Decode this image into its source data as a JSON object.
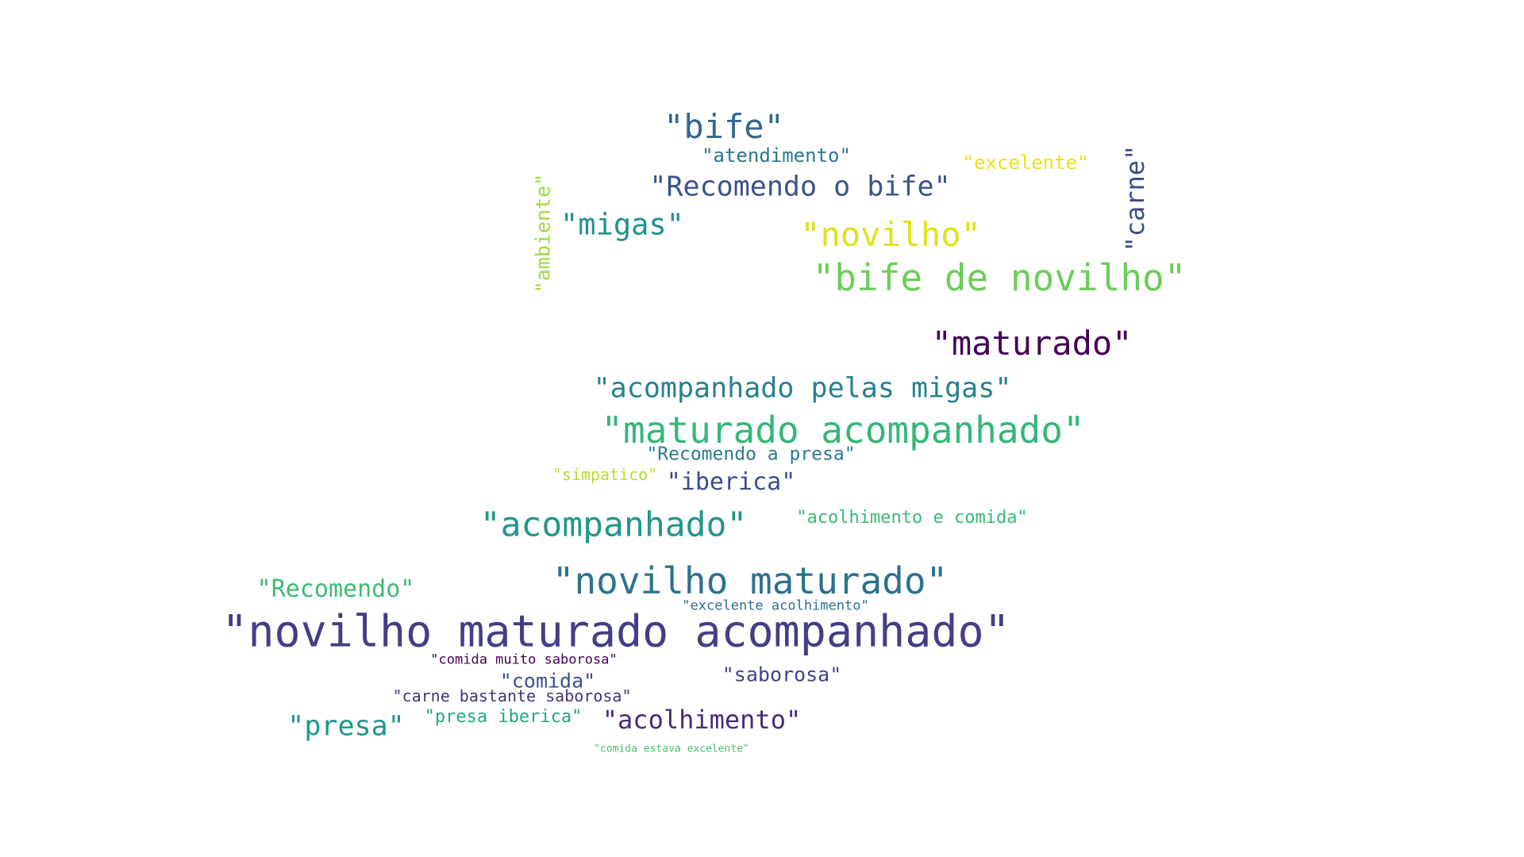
{
  "word_cloud": {
    "background": "#ffffff",
    "words": [
      {
        "id": "novilho-maturado-acompanhado",
        "text": "\"novilho maturado acompanhado\"",
        "color": "#433e85"
      },
      {
        "id": "bife-de-novilho",
        "text": "\"bife de novilho\"",
        "color": "#6ccd5a"
      },
      {
        "id": "maturado-acompanhado",
        "text": "\"maturado acompanhado\"",
        "color": "#35b779"
      },
      {
        "id": "novilho-maturado",
        "text": "\"novilho maturado\"",
        "color": "#2c728e"
      },
      {
        "id": "acompanhado",
        "text": "\"acompanhado\"",
        "color": "#1f988b"
      },
      {
        "id": "maturado",
        "text": "\"maturado\"",
        "color": "#440154"
      },
      {
        "id": "novilho",
        "text": "\"novilho\"",
        "color": "#dde318"
      },
      {
        "id": "bife",
        "text": "\"bife\"",
        "color": "#31688e"
      },
      {
        "id": "recomendo-o-bife",
        "text": "\"Recomendo o bife\"",
        "color": "#3b528b"
      },
      {
        "id": "migas",
        "text": "\"migas\"",
        "color": "#21918c"
      },
      {
        "id": "acompanhado-pelas-migas",
        "text": "\"acompanhado pelas migas\"",
        "color": "#26828e"
      },
      {
        "id": "carne",
        "text": "\"carne\"",
        "color": "#3e4a89"
      },
      {
        "id": "presa",
        "text": "\"presa\"",
        "color": "#1f968b"
      },
      {
        "id": "acolhimento",
        "text": "\"acolhimento\"",
        "color": "#472c7a"
      },
      {
        "id": "recomendo",
        "text": "\"Recomendo\"",
        "color": "#3dbc74"
      },
      {
        "id": "iberica",
        "text": "\"iberica\"",
        "color": "#3e4c8a"
      },
      {
        "id": "saborosa",
        "text": "\"saborosa\"",
        "color": "#414487"
      },
      {
        "id": "comida",
        "text": "\"comida\"",
        "color": "#3b528b"
      },
      {
        "id": "ambiente",
        "text": "\"ambiente\"",
        "color": "#a0da39"
      },
      {
        "id": "atendimento",
        "text": "\"atendimento\"",
        "color": "#2a788e"
      },
      {
        "id": "excelente",
        "text": "\"excelente\"",
        "color": "#e5e419"
      },
      {
        "id": "recomendo-a-presa",
        "text": "\"Recomendo a presa\"",
        "color": "#287c8e"
      },
      {
        "id": "acolhimento-e-comida",
        "text": "\"acolhimento e comida\"",
        "color": "#3aba76"
      },
      {
        "id": "presa-iberica",
        "text": "\"presa iberica\"",
        "color": "#22a785"
      },
      {
        "id": "carne-bastante-saborosa",
        "text": "\"carne bastante saborosa\"",
        "color": "#46327e"
      },
      {
        "id": "simpatico",
        "text": "\"simpatico\"",
        "color": "#b5de2b"
      },
      {
        "id": "excelente-acolhimento",
        "text": "\"excelente acolhimento\"",
        "color": "#2d708e"
      },
      {
        "id": "comida-muito-saborosa",
        "text": "\"comida muito saborosa\"",
        "color": "#440154"
      },
      {
        "id": "comida-estava-excelente",
        "text": "\"comida estava excelente\"",
        "color": "#4ac16d"
      }
    ]
  }
}
